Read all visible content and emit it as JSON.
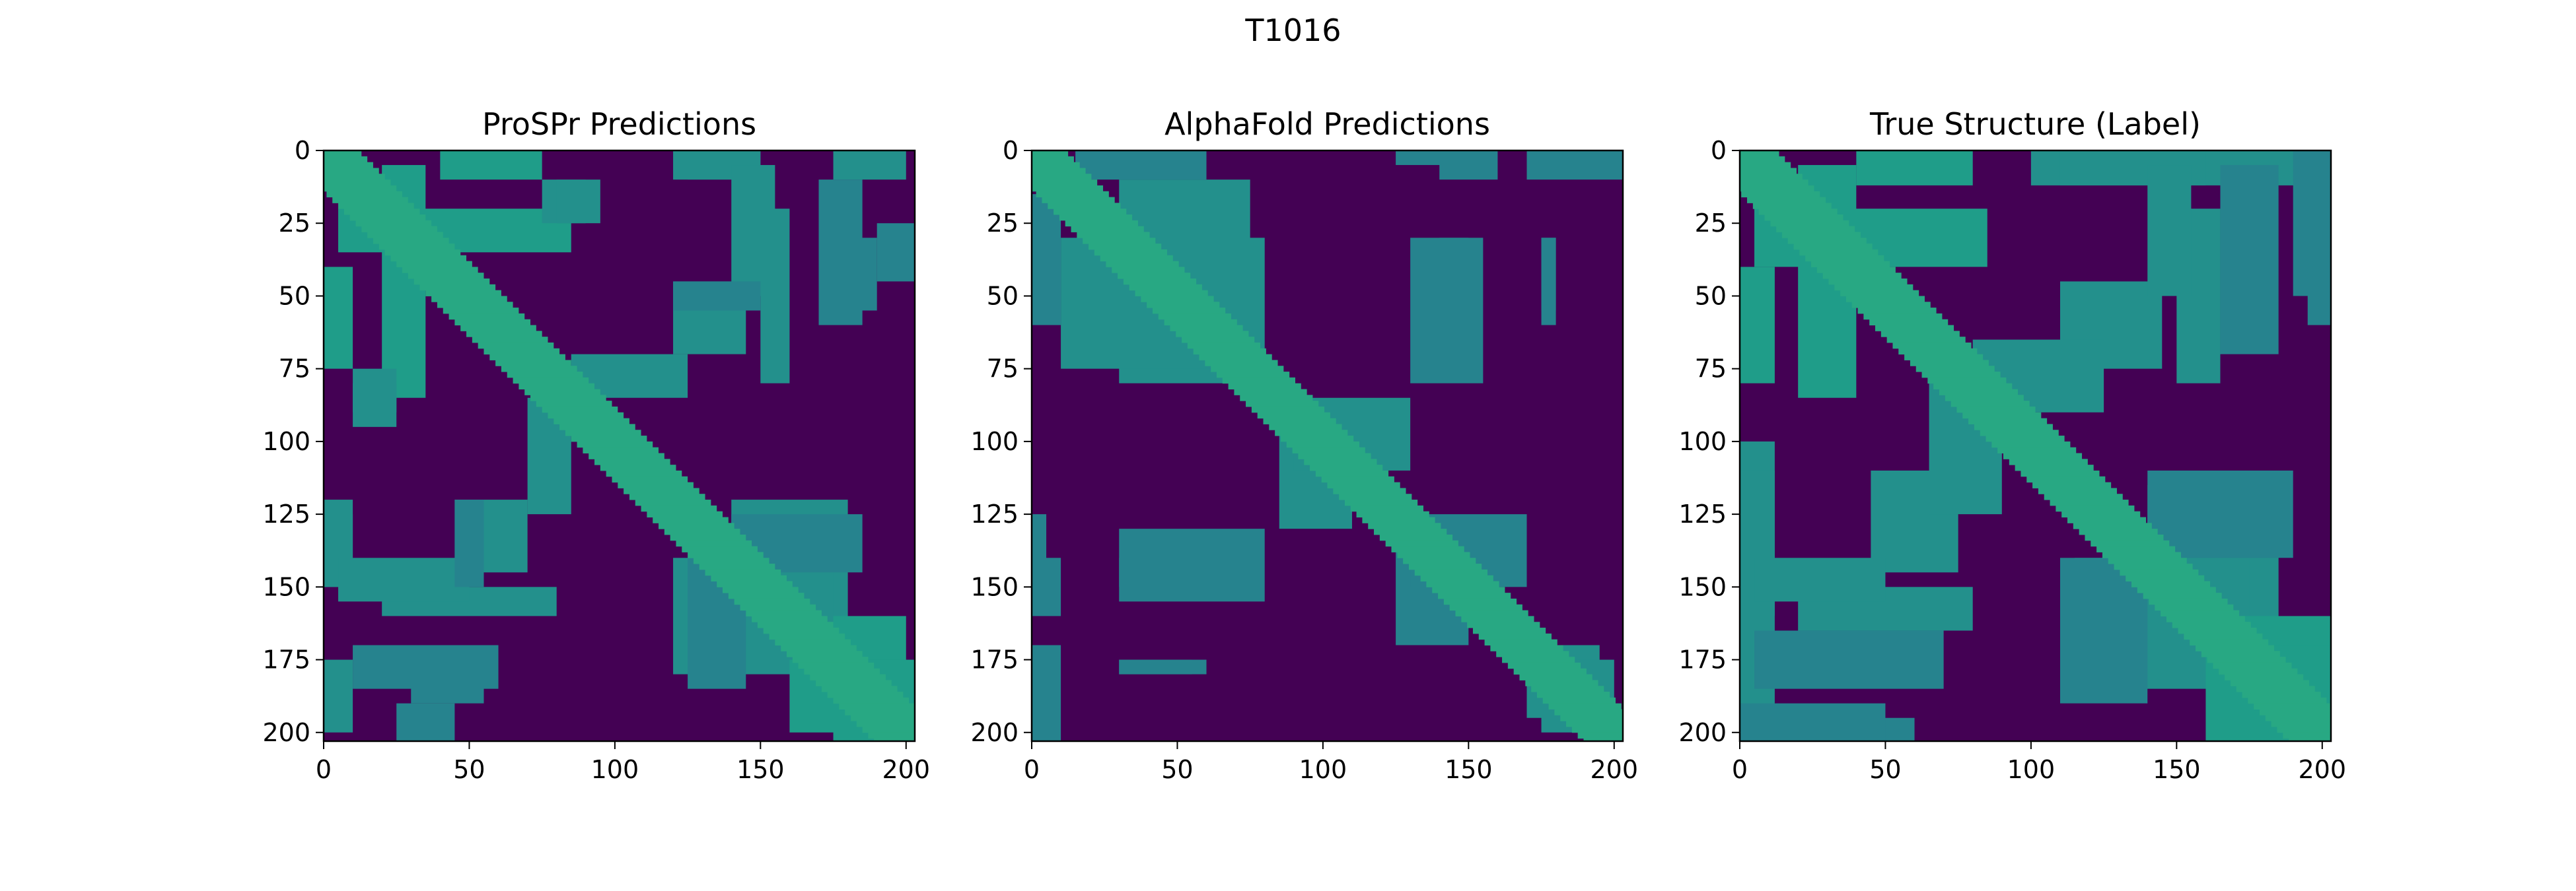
{
  "figure": {
    "title": "T1016"
  },
  "chart_data": [
    {
      "type": "heatmap",
      "title": "ProSPr Predictions",
      "colormap": "viridis",
      "n_residues": 203,
      "xlim": [
        0,
        203
      ],
      "ylim": [
        203,
        0
      ],
      "x_ticks": [
        0,
        50,
        100,
        150,
        200
      ],
      "y_ticks": [
        0,
        25,
        50,
        75,
        100,
        125,
        150,
        175,
        200
      ],
      "contact_bands": [
        {
          "i": [
            0,
            203
          ],
          "j_offset": 0,
          "width": 6,
          "value": 1.0
        },
        {
          "i": [
            0,
            203
          ],
          "j_offset": 8,
          "width": 10,
          "value": 0.6
        },
        {
          "i": [
            5,
            85
          ],
          "j": [
            20,
            35
          ],
          "value": 0.55
        },
        {
          "i": [
            40,
            75
          ],
          "j": [
            0,
            10
          ],
          "value": 0.55
        },
        {
          "i": [
            75,
            95
          ],
          "j": [
            10,
            25
          ],
          "value": 0.5
        },
        {
          "i": [
            0,
            10
          ],
          "j": [
            125,
            150
          ],
          "value": 0.5
        },
        {
          "i": [
            0,
            10
          ],
          "j": [
            175,
            200
          ],
          "value": 0.5
        },
        {
          "i": [
            10,
            25
          ],
          "j": [
            80,
            90
          ],
          "value": 0.5
        },
        {
          "i": [
            20,
            80
          ],
          "j": [
            150,
            160
          ],
          "value": 0.5
        },
        {
          "i": [
            30,
            55
          ],
          "j": [
            180,
            190
          ],
          "value": 0.45
        },
        {
          "i": [
            45,
            70
          ],
          "j": [
            120,
            145
          ],
          "value": 0.5
        },
        {
          "i": [
            85,
            125
          ],
          "j": [
            70,
            85
          ],
          "value": 0.5
        },
        {
          "i": [
            120,
            150
          ],
          "j": [
            0,
            10
          ],
          "value": 0.5
        },
        {
          "i": [
            140,
            155
          ],
          "j": [
            5,
            50
          ],
          "value": 0.5
        },
        {
          "i": [
            120,
            150
          ],
          "j": [
            45,
            55
          ],
          "value": 0.45
        },
        {
          "i": [
            170,
            185
          ],
          "j": [
            10,
            60
          ],
          "value": 0.45
        },
        {
          "i": [
            190,
            203
          ],
          "j": [
            25,
            45
          ],
          "value": 0.45
        },
        {
          "i": [
            120,
            175
          ],
          "j": [
            140,
            180
          ],
          "value": 0.5
        },
        {
          "i": [
            160,
            203
          ],
          "j": [
            175,
            200
          ],
          "value": 0.55
        },
        {
          "i": [
            140,
            185
          ],
          "j": [
            125,
            145
          ],
          "value": 0.45
        }
      ]
    },
    {
      "type": "heatmap",
      "title": "AlphaFold Predictions",
      "colormap": "viridis",
      "n_residues": 203,
      "xlim": [
        0,
        203
      ],
      "ylim": [
        203,
        0
      ],
      "x_ticks": [
        0,
        50,
        100,
        150,
        200
      ],
      "y_ticks": [
        0,
        25,
        50,
        75,
        100,
        125,
        150,
        175,
        200
      ],
      "contact_bands": [
        {
          "i": [
            0,
            203
          ],
          "j_offset": 0,
          "width": 5,
          "value": 1.0
        },
        {
          "i": [
            0,
            203
          ],
          "j_offset": 8,
          "width": 9,
          "value": 0.6
        },
        {
          "i": [
            10,
            80
          ],
          "j": [
            30,
            75
          ],
          "value": 0.5
        },
        {
          "i": [
            15,
            60
          ],
          "j": [
            0,
            10
          ],
          "value": 0.45
        },
        {
          "i": [
            0,
            5
          ],
          "j": [
            125,
            150
          ],
          "value": 0.45
        },
        {
          "i": [
            0,
            5
          ],
          "j": [
            170,
            190
          ],
          "value": 0.45
        },
        {
          "i": [
            30,
            70
          ],
          "j": [
            140,
            150
          ],
          "value": 0.45
        },
        {
          "i": [
            30,
            55
          ],
          "j": [
            175,
            180
          ],
          "value": 0.45
        },
        {
          "i": [
            90,
            130
          ],
          "j": [
            85,
            110
          ],
          "value": 0.5
        },
        {
          "i": [
            130,
            155
          ],
          "j": [
            30,
            80
          ],
          "value": 0.45
        },
        {
          "i": [
            140,
            160
          ],
          "j": [
            0,
            10
          ],
          "value": 0.45
        },
        {
          "i": [
            175,
            180
          ],
          "j": [
            30,
            60
          ],
          "value": 0.45
        },
        {
          "i": [
            170,
            203
          ],
          "j": [
            0,
            10
          ],
          "value": 0.45
        },
        {
          "i": [
            130,
            170
          ],
          "j": [
            125,
            150
          ],
          "value": 0.45
        },
        {
          "i": [
            170,
            200
          ],
          "j": [
            175,
            195
          ],
          "value": 0.5
        }
      ]
    },
    {
      "type": "heatmap",
      "title": "True Structure (Label)",
      "colormap": "viridis",
      "n_residues": 203,
      "xlim": [
        0,
        203
      ],
      "ylim": [
        203,
        0
      ],
      "x_ticks": [
        0,
        50,
        100,
        150,
        200
      ],
      "y_ticks": [
        0,
        25,
        50,
        75,
        100,
        125,
        150,
        175,
        200
      ],
      "contact_bands": [
        {
          "i": [
            0,
            203
          ],
          "j_offset": 0,
          "width": 6,
          "value": 1.0
        },
        {
          "i": [
            0,
            203
          ],
          "j_offset": 8,
          "width": 11,
          "value": 0.6
        },
        {
          "i": [
            5,
            85
          ],
          "j": [
            20,
            40
          ],
          "value": 0.55
        },
        {
          "i": [
            40,
            80
          ],
          "j": [
            0,
            12
          ],
          "value": 0.55
        },
        {
          "i": [
            0,
            12
          ],
          "j": [
            100,
            200
          ],
          "value": 0.5
        },
        {
          "i": [
            20,
            80
          ],
          "j": [
            150,
            165
          ],
          "value": 0.5
        },
        {
          "i": [
            30,
            60
          ],
          "j": [
            195,
            203
          ],
          "value": 0.45
        },
        {
          "i": [
            45,
            75
          ],
          "j": [
            110,
            145
          ],
          "value": 0.5
        },
        {
          "i": [
            80,
            125
          ],
          "j": [
            65,
            90
          ],
          "value": 0.5
        },
        {
          "i": [
            110,
            160
          ],
          "j": [
            0,
            12
          ],
          "value": 0.5
        },
        {
          "i": [
            140,
            155
          ],
          "j": [
            5,
            50
          ],
          "value": 0.5
        },
        {
          "i": [
            165,
            185
          ],
          "j": [
            5,
            70
          ],
          "value": 0.45
        },
        {
          "i": [
            190,
            203
          ],
          "j": [
            0,
            50
          ],
          "value": 0.45
        },
        {
          "i": [
            115,
            175
          ],
          "j": [
            140,
            185
          ],
          "value": 0.5
        },
        {
          "i": [
            160,
            203
          ],
          "j": [
            170,
            203
          ],
          "value": 0.55
        },
        {
          "i": [
            140,
            190
          ],
          "j": [
            110,
            140
          ],
          "value": 0.45
        }
      ]
    }
  ]
}
